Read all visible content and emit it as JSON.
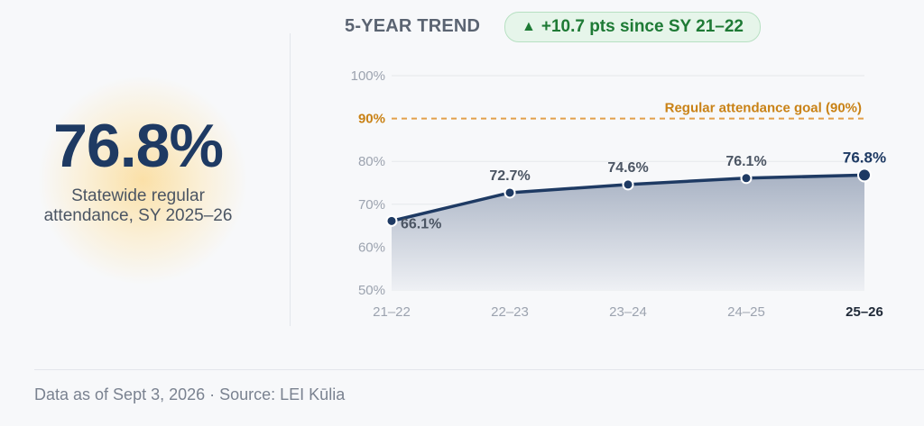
{
  "kpi": {
    "value": "76.8%",
    "caption": "Statewide regular attendance, SY 2025–26"
  },
  "trend": {
    "title": "5-YEAR TREND",
    "badge_icon": "up-triangle-icon",
    "badge_text": "+10.7 pts since SY 21–22"
  },
  "chart_data": {
    "type": "area",
    "title": "",
    "xlabel": "",
    "ylabel": "",
    "categories": [
      "21–22",
      "22–23",
      "23–24",
      "24–25",
      "25–26"
    ],
    "series": [
      {
        "values": [
          66.1,
          72.7,
          74.6,
          76.1,
          76.8
        ],
        "labels": [
          "66.1%",
          "72.7%",
          "74.6%",
          "76.1%",
          "76.8%"
        ]
      }
    ],
    "ylim": [
      50,
      100
    ],
    "yticks": [
      50,
      60,
      70,
      80,
      100
    ],
    "ytick_labels": [
      "50%",
      "60%",
      "70%",
      "80%",
      "100%"
    ],
    "goal": {
      "value": 90,
      "tick_label": "90%",
      "label": "Regular attendance goal (90%)"
    },
    "grid": true,
    "highlight_last": true,
    "colors": {
      "line": "#1e3a63",
      "area_top": "#a9b3c4",
      "area_bottom": "#eef0f4",
      "goal": "#e2a04a",
      "goal_text": "#c98216",
      "grid": "#e5e7eb",
      "tick": "#9ca3af",
      "label": "#4b5563"
    }
  },
  "footer": {
    "text": "Data as of Sept 3, 2026 · Source: LEI Kūlia"
  }
}
